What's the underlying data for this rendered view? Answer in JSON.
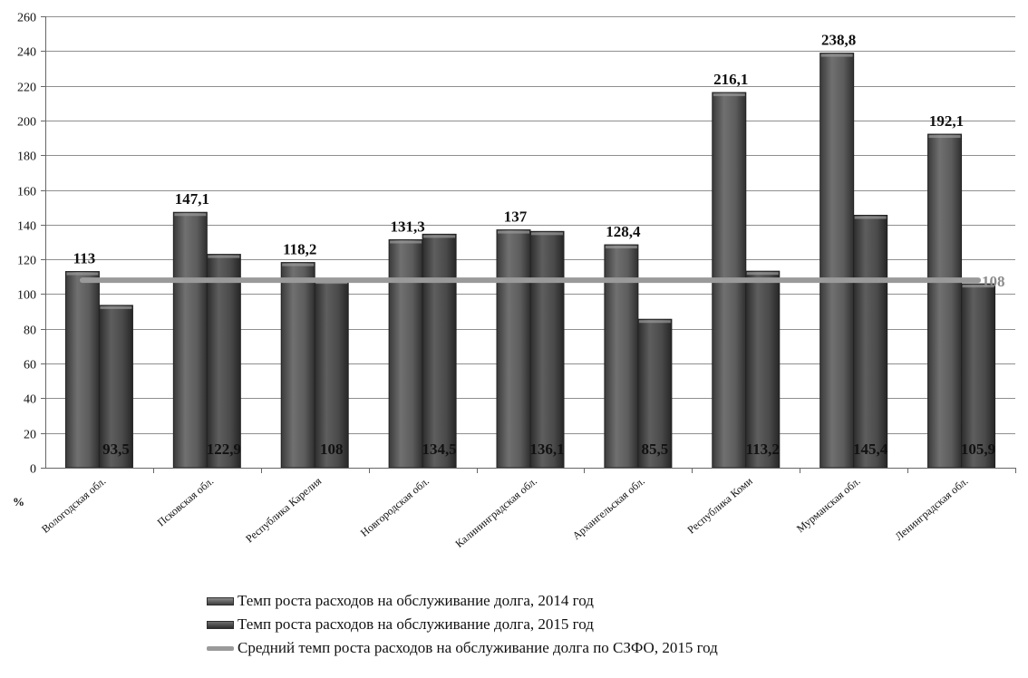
{
  "chart_data": {
    "type": "bar",
    "unit_label": "%",
    "ylim": [
      0,
      260
    ],
    "yticks": [
      0,
      20,
      40,
      60,
      80,
      100,
      120,
      140,
      160,
      180,
      200,
      220,
      240,
      260
    ],
    "grid": true,
    "legend_position": "bottom",
    "categories": [
      "Вологодская обл.",
      "Псковская обл.",
      "Республика Карелия",
      "Новгородская обл.",
      "Калининградская обл.",
      "Архангельская обл.",
      "Республика Коми",
      "Мурманская обл.",
      "Ленинградская обл."
    ],
    "series": [
      {
        "name": "Темп роста расходов на обслуживание долга, 2014 год",
        "values": [
          113,
          147.1,
          118.2,
          131.3,
          137,
          128.4,
          216.1,
          238.8,
          192.1
        ],
        "labels": [
          "113",
          "147,1",
          "118,2",
          "131,3",
          "137",
          "128,4",
          "216,1",
          "238,8",
          "192,1"
        ],
        "color": "#5a5a5a"
      },
      {
        "name": "Темп роста расходов на обслуживание долга, 2015 год",
        "values": [
          93.5,
          122.9,
          108,
          134.5,
          136.1,
          85.5,
          113.2,
          145.4,
          105.9
        ],
        "labels": [
          "93,5",
          "122,9",
          "108",
          "134,5",
          "136,1",
          "85,5",
          "113,2",
          "145,4",
          "105,9"
        ],
        "color": "#4a4a4a"
      }
    ],
    "average_line": {
      "name": "Средний темп роста расходов на обслуживание долга по СЗФО, 2015 год",
      "value": 108,
      "label": "108",
      "color": "#9a9a9a"
    }
  }
}
